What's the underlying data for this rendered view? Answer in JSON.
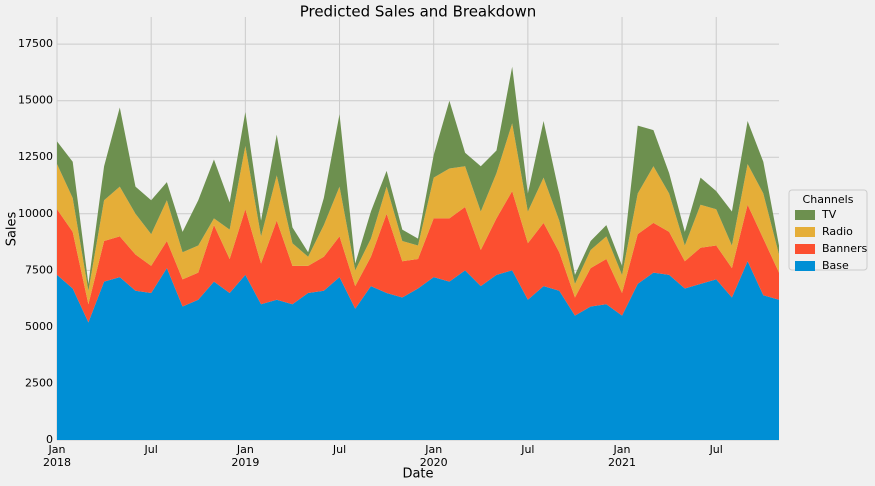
{
  "chart_data": {
    "type": "stacked_area",
    "title": "Predicted Sales and Breakdown",
    "x_label": "Date",
    "y_label": "Sales",
    "legend_title": "Channels",
    "legend": "right",
    "x": [
      "2018-01",
      "2018-02",
      "2018-03",
      "2018-04",
      "2018-05",
      "2018-06",
      "2018-07",
      "2018-08",
      "2018-09",
      "2018-10",
      "2018-11",
      "2018-12",
      "2019-01",
      "2019-02",
      "2019-03",
      "2019-04",
      "2019-05",
      "2019-06",
      "2019-07",
      "2019-08",
      "2019-09",
      "2019-10",
      "2019-11",
      "2019-12",
      "2020-01",
      "2020-02",
      "2020-03",
      "2020-04",
      "2020-05",
      "2020-06",
      "2020-07",
      "2020-08",
      "2020-09",
      "2020-10",
      "2020-11",
      "2020-12",
      "2021-01",
      "2021-02",
      "2021-03",
      "2021-04",
      "2021-05",
      "2021-06",
      "2021-07",
      "2021-08",
      "2021-09",
      "2021-10",
      "2021-11"
    ],
    "series": [
      {
        "name": "Base",
        "color": "#008fd5",
        "values": [
          7300,
          6700,
          5200,
          7000,
          7200,
          6600,
          6500,
          7600,
          5900,
          6200,
          7000,
          6500,
          7300,
          6000,
          6200,
          6000,
          6500,
          6600,
          7200,
          5800,
          6800,
          6500,
          6300,
          6700,
          7200,
          7000,
          7500,
          6800,
          7300,
          7500,
          6200,
          6800,
          6600,
          5500,
          5900,
          6000,
          5500,
          6900,
          7400,
          7300,
          6700,
          6900,
          7100,
          6300,
          7900,
          6400,
          6200
        ]
      },
      {
        "name": "Banners",
        "color": "#fc4f30",
        "values": [
          2900,
          2500,
          800,
          1800,
          1800,
          1600,
          1200,
          1200,
          1200,
          1200,
          2500,
          1500,
          2900,
          1800,
          3500,
          1700,
          1200,
          1500,
          1800,
          1000,
          1300,
          3500,
          1600,
          1300,
          2600,
          2800,
          2800,
          1600,
          2500,
          3500,
          2500,
          2800,
          1700,
          800,
          1700,
          2000,
          1000,
          2200,
          2200,
          1900,
          1200,
          1600,
          1500,
          1300,
          2500,
          2500,
          1200
        ]
      },
      {
        "name": "Radio",
        "color": "#e5ae38",
        "values": [
          2000,
          1500,
          600,
          1800,
          2200,
          1800,
          1400,
          1800,
          1200,
          1200,
          300,
          1300,
          2800,
          1200,
          2000,
          1000,
          400,
          1400,
          2200,
          700,
          800,
          1200,
          900,
          600,
          1800,
          2200,
          1800,
          1700,
          2000,
          3000,
          1400,
          2000,
          1400,
          600,
          800,
          1000,
          800,
          1800,
          2500,
          1700,
          700,
          1900,
          1600,
          1000,
          1800,
          2000,
          800
        ]
      },
      {
        "name": "TV",
        "color": "#6d904f",
        "values": [
          1000,
          1600,
          300,
          1500,
          3500,
          1200,
          1500,
          800,
          900,
          2000,
          2600,
          1200,
          1500,
          700,
          1800,
          700,
          200,
          1200,
          3200,
          300,
          1200,
          700,
          500,
          300,
          1000,
          3000,
          600,
          2000,
          1000,
          2500,
          800,
          2500,
          1200,
          400,
          400,
          500,
          400,
          3000,
          1600,
          900,
          600,
          1200,
          800,
          1500,
          1900,
          1400,
          400
        ]
      }
    ],
    "xlim": [
      "2018-01",
      "2021-11"
    ],
    "xticks": [
      {
        "value": "2018-01",
        "label": "Jan 2018"
      },
      {
        "value": "2018-07",
        "label": "Jul"
      },
      {
        "value": "2019-01",
        "label": "Jan 2019"
      },
      {
        "value": "2019-07",
        "label": "Jul"
      },
      {
        "value": "2020-01",
        "label": "Jan 2020"
      },
      {
        "value": "2020-07",
        "label": "Jul"
      },
      {
        "value": "2021-01",
        "label": "Jan 2021"
      },
      {
        "value": "2021-07",
        "label": "Jul"
      }
    ],
    "ylim": [
      0,
      18700
    ],
    "yticks": [
      0,
      2500,
      5000,
      7500,
      10000,
      12500,
      15000,
      17500
    ],
    "grid": true
  }
}
